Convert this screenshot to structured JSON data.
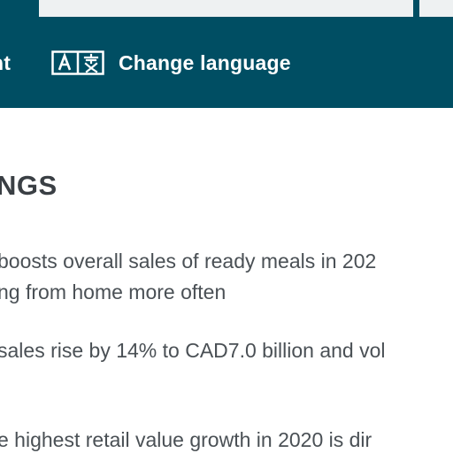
{
  "nav": {
    "left_item_label": "nt",
    "change_language_label": "Change language",
    "language_icon": "translate-icon",
    "background_color": "#004e63",
    "top_box_color": "#eef1f2"
  },
  "content": {
    "heading": "NGS",
    "paragraph1_line1": "boosts overall sales of ready meals in 202",
    "paragraph1_line2": "ng from home more often",
    "paragraph2_line1": "sales rise by 14% to CAD7.0 billion and vol",
    "paragraph3_line1": "e highest retail value growth in 2020 is dir"
  }
}
